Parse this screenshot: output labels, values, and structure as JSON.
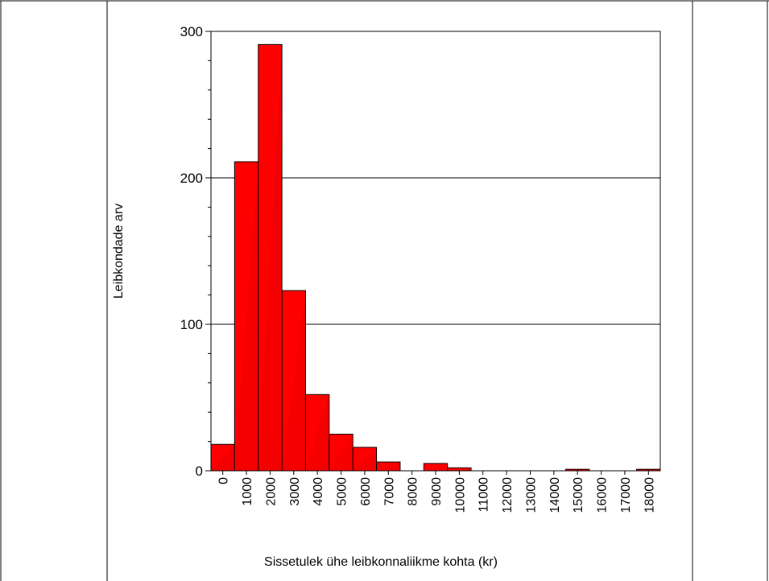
{
  "chart_data": {
    "type": "bar",
    "title": "",
    "xlabel": "Sissetulek ühe leibkonnaliikme kohta (kr)",
    "ylabel": "Leibkondade arv",
    "categories": [
      "0",
      "1000",
      "2000",
      "3000",
      "4000",
      "5000",
      "6000",
      "7000",
      "8000",
      "9000",
      "10000",
      "11000",
      "12000",
      "13000",
      "14000",
      "15000",
      "16000",
      "17000",
      "18000"
    ],
    "values": [
      18,
      211,
      291,
      123,
      52,
      25,
      16,
      6,
      0,
      5,
      2,
      0,
      0,
      0,
      0,
      1,
      0,
      0,
      1
    ],
    "yticks": [
      0,
      100,
      200,
      300
    ],
    "ylim": [
      0,
      300
    ],
    "grid": true,
    "colors": {
      "bar": "#ff0000",
      "bar_shade": "#d40000",
      "edge": "#000000"
    }
  }
}
